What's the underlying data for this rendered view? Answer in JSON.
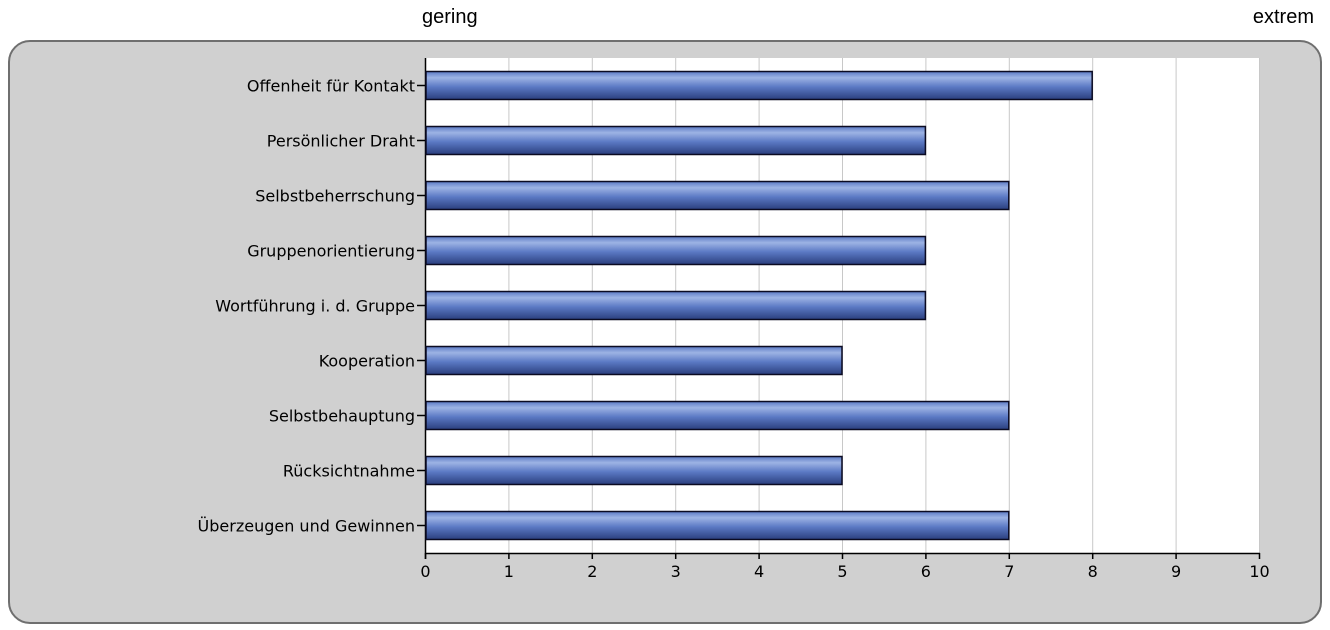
{
  "scale_labels": {
    "low": "gering",
    "high": "extrem"
  },
  "colors": {
    "bar_light": "#9db3e4",
    "bar_mid": "#5b79c4",
    "bar_dark": "#2a3f7e",
    "bar_border": "#0b0b22",
    "plot_bg": "#ffffff",
    "frame_bg": "#d0d0d0",
    "grid": "#c8c8c8"
  },
  "chart_data": {
    "type": "bar",
    "orientation": "horizontal",
    "categories": [
      "Offenheit für Kontakt",
      "Persönlicher Draht",
      "Selbstbeherrschung",
      "Gruppenorientierung",
      "Wortführung i. d. Gruppe",
      "Kooperation",
      "Selbstbehauptung",
      "Rücksichtnahme",
      "Überzeugen und Gewinnen"
    ],
    "values": [
      8,
      6,
      7,
      6,
      6,
      5,
      7,
      5,
      7
    ],
    "xlim": [
      0,
      10
    ],
    "xticks": [
      0,
      1,
      2,
      3,
      4,
      5,
      6,
      7,
      8,
      9,
      10
    ],
    "grid": true
  }
}
